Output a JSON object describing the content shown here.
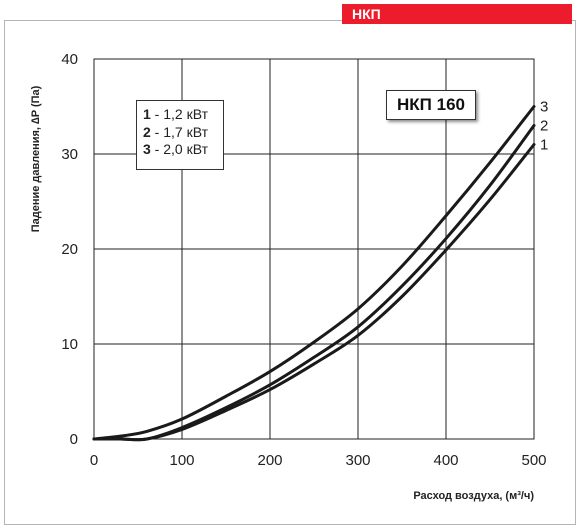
{
  "header": {
    "tag_label": "НКП"
  },
  "chart_data": {
    "type": "line",
    "title": "НКП 160",
    "xlabel": "Расход воздуха, (м³/ч)",
    "ylabel": "Падение давления, ∆P (Па)",
    "xlim": [
      0,
      500
    ],
    "ylim": [
      0,
      40
    ],
    "xticks": [
      0,
      100,
      200,
      300,
      400,
      500
    ],
    "yticks": [
      0,
      10,
      20,
      30,
      40
    ],
    "grid": true,
    "legend_position": "top-left",
    "legend": [
      {
        "num": "1",
        "text": " - 1,2 кВт"
      },
      {
        "num": "2",
        "text": " - 1,7 кВт"
      },
      {
        "num": "3",
        "text": " - 2,0 кВт"
      }
    ],
    "series": [
      {
        "name": "1",
        "x": [
          0,
          30,
          60,
          100,
          150,
          200,
          250,
          300,
          350,
          400,
          450,
          500
        ],
        "y": [
          0,
          0,
          0,
          1.0,
          3.0,
          5.2,
          7.9,
          10.9,
          15.0,
          19.9,
          25.2,
          31.0
        ]
      },
      {
        "name": "2",
        "x": [
          0,
          30,
          60,
          100,
          150,
          200,
          250,
          300,
          350,
          400,
          450,
          500
        ],
        "y": [
          0,
          0,
          0,
          1.2,
          3.3,
          5.7,
          8.6,
          11.8,
          16.1,
          21.1,
          26.7,
          33.0
        ]
      },
      {
        "name": "3",
        "x": [
          0,
          30,
          60,
          100,
          150,
          200,
          250,
          300,
          350,
          400,
          450,
          500
        ],
        "y": [
          0,
          0.3,
          0.8,
          2.1,
          4.5,
          7.1,
          10.2,
          13.7,
          18.2,
          23.5,
          29.1,
          35.0
        ]
      }
    ]
  }
}
